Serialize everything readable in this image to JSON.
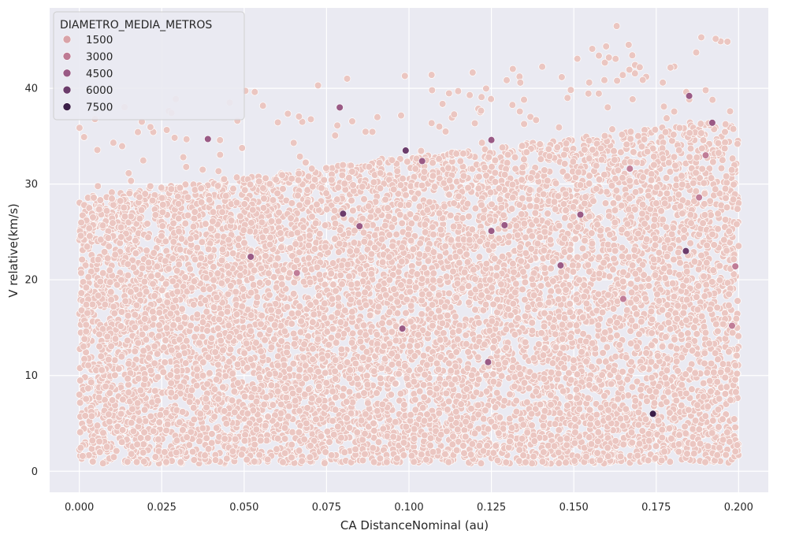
{
  "chart_data": {
    "type": "scatter",
    "title": "",
    "xlabel": "CA DistanceNominal (au)",
    "ylabel": "V relative(km/s)",
    "xlim": [
      -0.009,
      0.209
    ],
    "ylim": [
      -2.2,
      48.4
    ],
    "xticks": [
      0.0,
      0.025,
      0.05,
      0.075,
      0.1,
      0.125,
      0.15,
      0.175,
      0.2
    ],
    "xtick_labels": [
      "0.000",
      "0.025",
      "0.050",
      "0.075",
      "0.100",
      "0.125",
      "0.150",
      "0.175",
      "0.200"
    ],
    "yticks": [
      0,
      10,
      20,
      30,
      40
    ],
    "ytick_labels": [
      "0",
      "10",
      "20",
      "30",
      "40"
    ],
    "grid": true,
    "legend": {
      "title": "DIAMETRO_MEDIA_METROS",
      "placement": "top-left",
      "entries": [
        {
          "label": "1500",
          "color": "#d9a3a8"
        },
        {
          "label": "3000",
          "color": "#be7a93"
        },
        {
          "label": "4500",
          "color": "#9a5a85"
        },
        {
          "label": "6000",
          "color": "#6b3c6b"
        },
        {
          "label": "7500",
          "color": "#3b1f48"
        }
      ]
    },
    "colors": {
      "background": "#eaeaf2",
      "grid": "#ffffff",
      "point_small": "#ebc6c1",
      "point_edge": "#ffffff"
    },
    "series": [
      {
        "note_points": "dense uniform cloud of ~20000 points",
        "x_range": [
          0.0,
          0.2
        ],
        "y_range": [
          0.0,
          46.5
        ],
        "points": [
          [
            0.163,
            46.5,
            400
          ],
          [
            0.17,
            42.2,
            400
          ],
          [
            0.177,
            40.6,
            400
          ],
          [
            0.107,
            39.8,
            400
          ],
          [
            0.19,
            39.8,
            400
          ],
          [
            0.185,
            39.2,
            4000
          ],
          [
            0.079,
            38.0,
            5000
          ],
          [
            0.099,
            33.5,
            6000
          ],
          [
            0.039,
            34.7,
            4500
          ],
          [
            0.125,
            34.6,
            4500
          ],
          [
            0.104,
            32.4,
            4500
          ],
          [
            0.192,
            36.4,
            4500
          ],
          [
            0.167,
            31.6,
            3500
          ],
          [
            0.19,
            33.0,
            3500
          ],
          [
            0.052,
            22.4,
            4500
          ],
          [
            0.085,
            25.6,
            4500
          ],
          [
            0.125,
            25.1,
            5000
          ],
          [
            0.129,
            25.7,
            4000
          ],
          [
            0.08,
            26.9,
            6000
          ],
          [
            0.184,
            23.0,
            6000
          ],
          [
            0.152,
            26.8,
            4500
          ],
          [
            0.188,
            28.6,
            3500
          ],
          [
            0.146,
            21.5,
            4500
          ],
          [
            0.098,
            14.9,
            4500
          ],
          [
            0.124,
            11.4,
            4000
          ],
          [
            0.198,
            15.2,
            3500
          ],
          [
            0.174,
            6.0,
            7500
          ],
          [
            0.165,
            18.0,
            3500
          ],
          [
            0.199,
            21.4,
            3000
          ],
          [
            0.066,
            20.7,
            3500
          ]
        ]
      }
    ]
  }
}
